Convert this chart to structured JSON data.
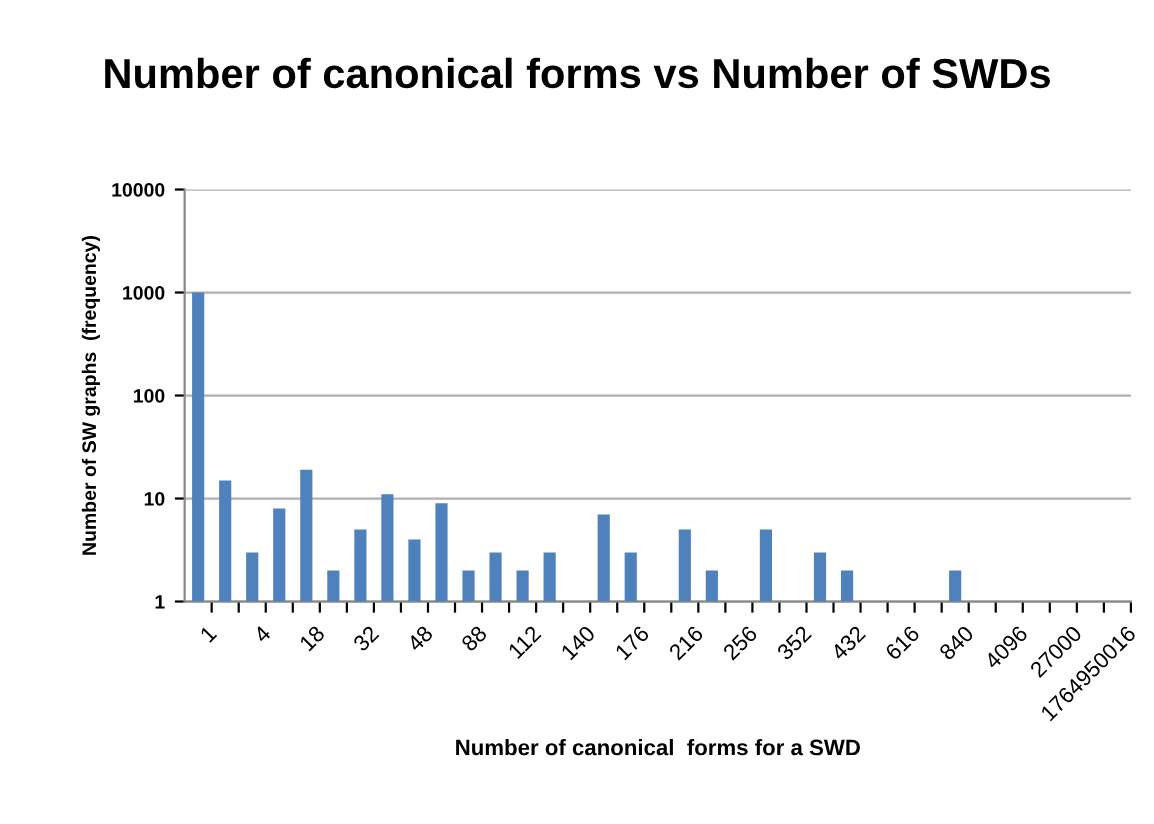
{
  "chart_data": {
    "type": "bar",
    "title": "Number of canonical forms vs Number of SWDs",
    "xlabel": "Number of canonical  forms for a SWD",
    "ylabel": "Number of SW graphs  (frequency)",
    "categories": [
      "1",
      null,
      "4",
      null,
      "18",
      null,
      "32",
      null,
      "48",
      null,
      "88",
      null,
      "112",
      null,
      "140",
      null,
      "176",
      null,
      "216",
      null,
      "256",
      null,
      "352",
      null,
      "432",
      null,
      "616",
      null,
      "840",
      null,
      "4096",
      null,
      "27000",
      null,
      "1764950016"
    ],
    "values": [
      1000,
      15,
      3,
      8,
      19,
      2,
      5,
      11,
      4,
      9,
      2,
      3,
      2,
      3,
      null,
      7,
      3,
      null,
      5,
      2,
      null,
      5,
      null,
      3,
      2,
      null,
      null,
      null,
      2,
      null,
      null,
      null,
      null,
      null,
      null
    ],
    "color": "#4f81bd",
    "log": "y",
    "ylim": [
      1,
      10000
    ],
    "yticks": [
      1,
      10,
      100,
      1000,
      10000
    ],
    "grid": "y",
    "legend": false
  }
}
